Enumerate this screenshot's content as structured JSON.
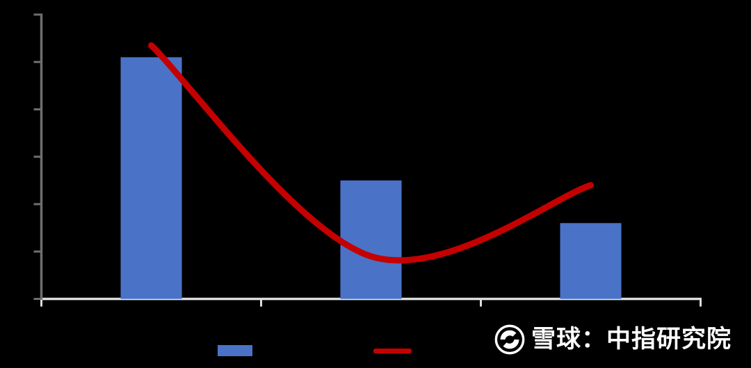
{
  "background_color": "#000000",
  "chart_data": {
    "type": "bar",
    "subtype": "bar-line-combo",
    "title": "",
    "xlabel": "",
    "ylabel": "",
    "categories": [
      "",
      "",
      ""
    ],
    "series": [
      {
        "name": "",
        "type": "bar",
        "color": "#4A73C8",
        "values": [
          5.1,
          2.5,
          1.6
        ]
      },
      {
        "name": "",
        "type": "line",
        "color": "#C50000",
        "values": [
          5.35,
          0.9,
          2.4
        ],
        "smooth": true
      }
    ],
    "ylim": [
      0,
      6
    ],
    "y_ticks": [
      0,
      1,
      2,
      3,
      4,
      5,
      6
    ],
    "x_tick_boundaries": 4,
    "grid": false,
    "legend_position": "bottom",
    "axis_colors": {
      "y_axis": "#6E6E6E",
      "x_axis": "#DCDCDC"
    },
    "note": "values estimated in gridline units; all text labels (title, axis tick labels, category labels, legend labels, data labels) are not visible against the black/transparent background"
  },
  "legend": {
    "items": [
      {
        "swatch": "bar-swatch",
        "color": "#4A73C8",
        "label": ""
      },
      {
        "swatch": "line-swatch",
        "color": "#C50000",
        "label": ""
      }
    ]
  },
  "watermark": {
    "brand_icon": "xueqiu-snowball-logo",
    "text": "雪球：中指研究院",
    "color": "#FFFFFF"
  }
}
